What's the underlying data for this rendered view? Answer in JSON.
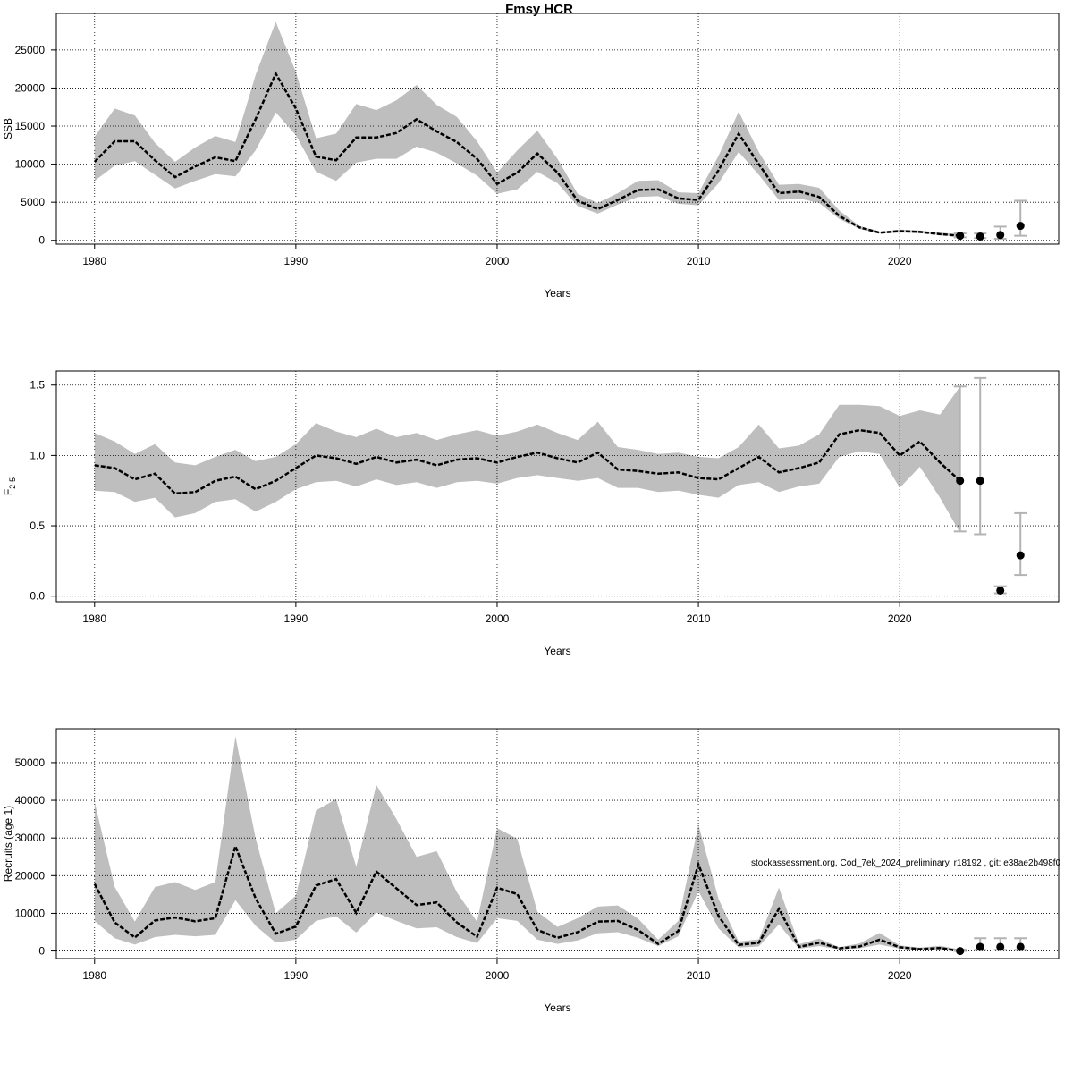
{
  "figure": {
    "title": "Fmsy HCR",
    "footnote": "stockassessment.org, Cod_7ek_2024_preliminary, r18192 , git: e38ae2b498f0"
  },
  "colors": {
    "band": "#bebebe",
    "line": "#000000",
    "grid": "#000000",
    "errorbar": "#b3b3b3",
    "background": "#ffffff"
  },
  "chart_data": [
    {
      "type": "line",
      "xlabel": "Years",
      "ylabel": "SSB",
      "ylabel_sub": "",
      "xlim": [
        1978.1,
        2027.9
      ],
      "ylim": [
        -500,
        29800
      ],
      "xticks": [
        1980,
        1990,
        2000,
        2010,
        2020
      ],
      "yticks": [
        0,
        5000,
        10000,
        15000,
        20000,
        25000
      ],
      "tick_labels_x": [
        "1980",
        "1990",
        "2000",
        "2010",
        "2020"
      ],
      "tick_labels_y": [
        "0",
        "5000",
        "10000",
        "15000",
        "20000",
        "25000"
      ],
      "grid": true,
      "years": [
        1980,
        1981,
        1982,
        1983,
        1984,
        1985,
        1986,
        1987,
        1988,
        1989,
        1990,
        1991,
        1992,
        1993,
        1994,
        1995,
        1996,
        1997,
        1998,
        1999,
        2000,
        2001,
        2002,
        2003,
        2004,
        2005,
        2006,
        2007,
        2008,
        2009,
        2010,
        2011,
        2012,
        2013,
        2014,
        2015,
        2016,
        2017,
        2018,
        2019,
        2020,
        2021,
        2022,
        2023
      ],
      "estimate": [
        10300,
        13000,
        13000,
        10500,
        8300,
        9700,
        10900,
        10400,
        15900,
        21900,
        17300,
        11000,
        10500,
        13500,
        13500,
        14100,
        15900,
        14300,
        12900,
        10700,
        7400,
        8900,
        11400,
        8900,
        5200,
        4100,
        5300,
        6600,
        6700,
        5500,
        5300,
        9200,
        14000,
        10000,
        6200,
        6400,
        5700,
        3200,
        1700,
        1000,
        1200,
        1100,
        800,
        600
      ],
      "lower": [
        7800,
        9800,
        10400,
        8600,
        6800,
        7800,
        8700,
        8400,
        11800,
        16800,
        13800,
        9000,
        7800,
        10200,
        10700,
        10700,
        12300,
        11500,
        10100,
        8500,
        6100,
        6700,
        9000,
        7500,
        4500,
        3500,
        4700,
        5700,
        5800,
        4800,
        4600,
        7500,
        11600,
        8600,
        5300,
        5500,
        4900,
        2800,
        1500,
        900,
        1000,
        1000,
        700,
        500
      ],
      "upper": [
        13600,
        17300,
        16400,
        12800,
        10300,
        12200,
        13700,
        12900,
        21700,
        28700,
        22100,
        13400,
        14000,
        17900,
        17100,
        18400,
        20400,
        17800,
        16200,
        13000,
        8900,
        11800,
        14400,
        10700,
        6100,
        4900,
        6200,
        7800,
        7900,
        6300,
        6200,
        11100,
        16900,
        11600,
        7300,
        7400,
        6900,
        3900,
        1900,
        1100,
        1400,
        1300,
        1000,
        800
      ],
      "forecast": [
        {
          "year": 2023,
          "value": 600,
          "low": 400,
          "high": 900
        },
        {
          "year": 2024,
          "value": 500,
          "low": 300,
          "high": 900
        },
        {
          "year": 2025,
          "value": 700,
          "low": 200,
          "high": 1800
        },
        {
          "year": 2026,
          "value": 1900,
          "low": 600,
          "high": 5200
        }
      ]
    },
    {
      "type": "line",
      "xlabel": "Years",
      "ylabel": "F",
      "ylabel_sub": "2-5",
      "xlim": [
        1978.1,
        2027.9
      ],
      "ylim": [
        -0.04,
        1.6
      ],
      "xticks": [
        1980,
        1990,
        2000,
        2010,
        2020
      ],
      "yticks": [
        0.0,
        0.5,
        1.0,
        1.5
      ],
      "tick_labels_x": [
        "1980",
        "1990",
        "2000",
        "2010",
        "2020"
      ],
      "tick_labels_y": [
        "0.0",
        "0.5",
        "1.0",
        "1.5"
      ],
      "grid": true,
      "years": [
        1980,
        1981,
        1982,
        1983,
        1984,
        1985,
        1986,
        1987,
        1988,
        1989,
        1990,
        1991,
        1992,
        1993,
        1994,
        1995,
        1996,
        1997,
        1998,
        1999,
        2000,
        2001,
        2002,
        2003,
        2004,
        2005,
        2006,
        2007,
        2008,
        2009,
        2010,
        2011,
        2012,
        2013,
        2014,
        2015,
        2016,
        2017,
        2018,
        2019,
        2020,
        2021,
        2022,
        2023
      ],
      "estimate": [
        0.93,
        0.91,
        0.83,
        0.87,
        0.73,
        0.74,
        0.82,
        0.85,
        0.76,
        0.82,
        0.91,
        1.0,
        0.98,
        0.94,
        0.99,
        0.95,
        0.97,
        0.93,
        0.97,
        0.98,
        0.95,
        0.99,
        1.02,
        0.98,
        0.95,
        1.02,
        0.9,
        0.89,
        0.87,
        0.88,
        0.84,
        0.83,
        0.91,
        0.99,
        0.88,
        0.91,
        0.95,
        1.15,
        1.18,
        1.16,
        1.0,
        1.1,
        0.95,
        0.82
      ],
      "lower": [
        0.75,
        0.74,
        0.67,
        0.7,
        0.56,
        0.59,
        0.67,
        0.69,
        0.6,
        0.67,
        0.76,
        0.81,
        0.82,
        0.78,
        0.83,
        0.79,
        0.81,
        0.77,
        0.81,
        0.82,
        0.8,
        0.84,
        0.86,
        0.84,
        0.82,
        0.84,
        0.77,
        0.77,
        0.74,
        0.75,
        0.72,
        0.7,
        0.79,
        0.81,
        0.74,
        0.78,
        0.8,
        0.99,
        1.03,
        1.01,
        0.77,
        0.92,
        0.7,
        0.45
      ],
      "upper": [
        1.16,
        1.1,
        1.01,
        1.08,
        0.95,
        0.93,
        0.99,
        1.04,
        0.96,
        0.99,
        1.08,
        1.23,
        1.17,
        1.13,
        1.19,
        1.13,
        1.16,
        1.11,
        1.15,
        1.18,
        1.14,
        1.17,
        1.22,
        1.16,
        1.11,
        1.24,
        1.06,
        1.04,
        1.01,
        1.02,
        0.99,
        0.98,
        1.06,
        1.22,
        1.05,
        1.07,
        1.15,
        1.36,
        1.36,
        1.35,
        1.28,
        1.32,
        1.29,
        1.49
      ],
      "forecast": [
        {
          "year": 2023,
          "value": 0.82,
          "low": 0.46,
          "high": 1.49
        },
        {
          "year": 2024,
          "value": 0.82,
          "low": 0.44,
          "high": 1.55
        },
        {
          "year": 2025,
          "value": 0.04,
          "low": 0.02,
          "high": 0.07
        },
        {
          "year": 2026,
          "value": 0.29,
          "low": 0.15,
          "high": 0.59
        }
      ]
    },
    {
      "type": "line",
      "xlabel": "Years",
      "ylabel": "Recruits (age 1)",
      "ylabel_sub": "",
      "xlim": [
        1978.1,
        2027.9
      ],
      "ylim": [
        -2000,
        59000
      ],
      "xticks": [
        1980,
        1990,
        2000,
        2010,
        2020
      ],
      "yticks": [
        0,
        10000,
        20000,
        30000,
        40000,
        50000
      ],
      "tick_labels_x": [
        "1980",
        "1990",
        "2000",
        "2010",
        "2020"
      ],
      "tick_labels_y": [
        "0",
        "10000",
        "20000",
        "30000",
        "40000",
        "50000"
      ],
      "grid": true,
      "years": [
        1980,
        1981,
        1982,
        1983,
        1984,
        1985,
        1986,
        1987,
        1988,
        1989,
        1990,
        1991,
        1992,
        1993,
        1994,
        1995,
        1996,
        1997,
        1998,
        1999,
        2000,
        2001,
        2002,
        2003,
        2004,
        2005,
        2006,
        2007,
        2008,
        2009,
        2010,
        2011,
        2012,
        2013,
        2014,
        2015,
        2016,
        2017,
        2018,
        2019,
        2020,
        2021,
        2022,
        2023
      ],
      "estimate": [
        17800,
        7600,
        3600,
        8100,
        8900,
        7900,
        8700,
        27800,
        14000,
        4600,
        6500,
        17400,
        19100,
        10100,
        21100,
        16600,
        12200,
        12900,
        7600,
        3800,
        16800,
        15100,
        5600,
        3500,
        5000,
        7800,
        8000,
        5600,
        1900,
        5300,
        23000,
        9300,
        1600,
        2200,
        11200,
        1100,
        2200,
        700,
        1200,
        3000,
        1000,
        500,
        800,
        0
      ],
      "lower": [
        8000,
        3400,
        1700,
        3700,
        4300,
        3900,
        4300,
        13500,
        6700,
        2200,
        3000,
        8000,
        9200,
        4900,
        10200,
        8000,
        6000,
        6300,
        3700,
        2100,
        8700,
        8000,
        3000,
        1900,
        2800,
        4700,
        5000,
        3500,
        1300,
        3900,
        15900,
        6000,
        900,
        1200,
        7100,
        600,
        1300,
        400,
        700,
        1700,
        600,
        300,
        400,
        0
      ],
      "upper": [
        39600,
        17000,
        7800,
        17000,
        18300,
        16200,
        18300,
        57000,
        30000,
        10000,
        14700,
        37300,
        40300,
        22400,
        44100,
        35000,
        25000,
        26500,
        15600,
        7800,
        32600,
        29800,
        10400,
        6400,
        8700,
        11800,
        12100,
        8600,
        3000,
        8000,
        33500,
        13800,
        2500,
        3100,
        16800,
        1800,
        3300,
        1000,
        2000,
        4800,
        1500,
        900,
        1400,
        400
      ],
      "forecast": [
        {
          "year": 2023,
          "value": 0,
          "low": 0,
          "high": 400
        },
        {
          "year": 2024,
          "value": 1100,
          "low": 300,
          "high": 3400
        },
        {
          "year": 2025,
          "value": 1100,
          "low": 300,
          "high": 3400
        },
        {
          "year": 2026,
          "value": 1100,
          "low": 300,
          "high": 3400
        }
      ]
    }
  ]
}
